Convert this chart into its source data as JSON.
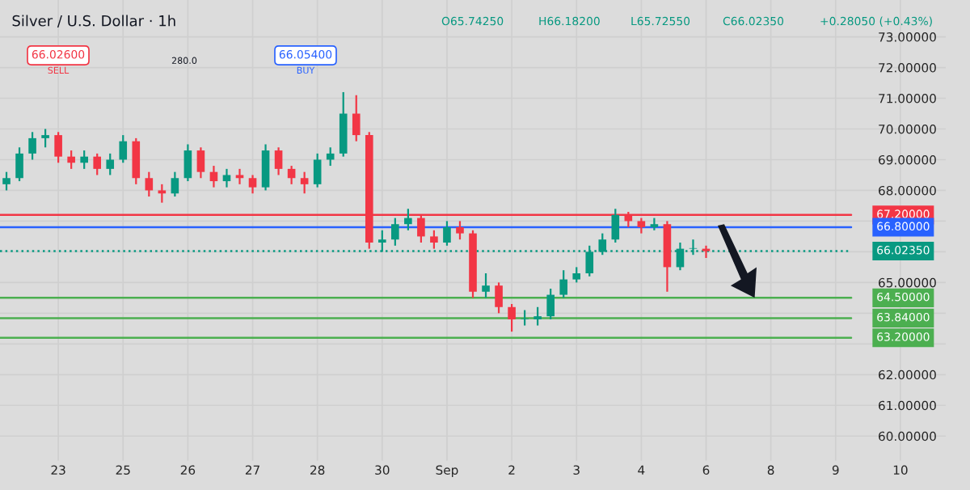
{
  "chart_data": {
    "type": "candlestick",
    "title": "Silver / U.S. Dollar · 1h",
    "annotations": [
      "O65.74250",
      "H66.18200",
      "L65.72550",
      "C66.02350",
      "+0.28050 (+0.43%)",
      "66.02600",
      "SELL",
      "280.0",
      "66.05400",
      "BUY"
    ],
    "categories": [
      null,
      null,
      null,
      null,
      "23",
      null,
      null,
      null,
      null,
      "25",
      null,
      null,
      null,
      null,
      "26",
      null,
      null,
      null,
      null,
      "27",
      null,
      null,
      null,
      null,
      "28",
      null,
      null,
      null,
      null,
      "30",
      null,
      null,
      null,
      null,
      "Sep",
      null,
      null,
      null,
      null,
      "2",
      null,
      null,
      null,
      null,
      "3",
      null,
      null,
      null,
      null,
      "4",
      null,
      null,
      null,
      null,
      "6",
      null,
      null,
      null,
      null,
      "8",
      null,
      null,
      null,
      null,
      "9",
      null,
      null,
      null,
      null,
      "10",
      null,
      null,
      null
    ],
    "ohlc": [
      [
        68.2,
        68.6,
        68.0,
        68.4
      ],
      [
        68.4,
        69.4,
        68.3,
        69.2
      ],
      [
        69.2,
        69.9,
        69.0,
        69.7
      ],
      [
        69.7,
        70.0,
        69.4,
        69.8
      ],
      [
        69.8,
        69.9,
        68.9,
        69.1
      ],
      [
        69.1,
        69.3,
        68.7,
        68.9
      ],
      [
        68.9,
        69.3,
        68.7,
        69.1
      ],
      [
        69.1,
        69.2,
        68.5,
        68.7
      ],
      [
        68.7,
        69.2,
        68.5,
        69.0
      ],
      [
        69.0,
        69.8,
        68.9,
        69.6
      ],
      [
        69.6,
        69.7,
        68.2,
        68.4
      ],
      [
        68.4,
        68.6,
        67.8,
        68.0
      ],
      [
        68.0,
        68.2,
        67.6,
        67.9
      ],
      [
        67.9,
        68.6,
        67.8,
        68.4
      ],
      [
        68.4,
        69.5,
        68.3,
        69.3
      ],
      [
        69.3,
        69.4,
        68.4,
        68.6
      ],
      [
        68.6,
        68.8,
        68.1,
        68.3
      ],
      [
        68.3,
        68.7,
        68.1,
        68.5
      ],
      [
        68.5,
        68.7,
        68.2,
        68.4
      ],
      [
        68.4,
        68.5,
        67.9,
        68.1
      ],
      [
        68.1,
        69.5,
        68.0,
        69.3
      ],
      [
        69.3,
        69.4,
        68.5,
        68.7
      ],
      [
        68.7,
        68.8,
        68.2,
        68.4
      ],
      [
        68.4,
        68.6,
        67.9,
        68.2
      ],
      [
        68.2,
        69.2,
        68.1,
        69.0
      ],
      [
        69.0,
        69.4,
        68.8,
        69.2
      ],
      [
        69.2,
        71.2,
        69.1,
        70.5
      ],
      [
        70.5,
        71.1,
        69.6,
        69.8
      ],
      [
        69.8,
        69.9,
        66.1,
        66.3
      ],
      [
        66.3,
        66.7,
        66.0,
        66.4
      ],
      [
        66.4,
        67.1,
        66.2,
        66.9
      ],
      [
        66.9,
        67.4,
        66.7,
        67.1
      ],
      [
        67.1,
        67.2,
        66.3,
        66.5
      ],
      [
        66.5,
        66.7,
        66.1,
        66.3
      ],
      [
        66.3,
        67.0,
        66.2,
        66.8
      ],
      [
        66.8,
        67.0,
        66.4,
        66.6
      ],
      [
        66.6,
        66.7,
        64.5,
        64.7
      ],
      [
        64.7,
        65.3,
        64.5,
        64.9
      ],
      [
        64.9,
        65.0,
        64.0,
        64.2
      ],
      [
        64.2,
        64.3,
        63.4,
        63.8
      ],
      [
        63.8,
        64.1,
        63.6,
        63.8
      ],
      [
        63.8,
        64.2,
        63.6,
        63.9
      ],
      [
        63.9,
        64.8,
        63.8,
        64.6
      ],
      [
        64.6,
        65.4,
        64.5,
        65.1
      ],
      [
        65.1,
        65.5,
        65.0,
        65.3
      ],
      [
        65.3,
        66.2,
        65.2,
        66.0
      ],
      [
        66.0,
        66.6,
        65.9,
        66.4
      ],
      [
        66.4,
        67.4,
        66.3,
        67.2
      ],
      [
        67.2,
        67.3,
        66.8,
        67.0
      ],
      [
        67.0,
        67.1,
        66.6,
        66.8
      ],
      [
        66.8,
        67.1,
        66.7,
        66.9
      ],
      [
        66.9,
        67.0,
        64.7,
        65.5
      ],
      [
        65.5,
        66.3,
        65.4,
        66.1
      ],
      [
        66.1,
        66.4,
        65.9,
        66.1
      ],
      [
        66.1,
        66.2,
        65.8,
        66.02
      ],
      null,
      null,
      null,
      null,
      null,
      null,
      null,
      null,
      null,
      null,
      null,
      null,
      null,
      null,
      null,
      null,
      null,
      null
    ],
    "colors": [
      "#089981",
      "#089981",
      "#089981",
      "#089981",
      "#f23645",
      "#f23645",
      "#089981",
      "#f23645",
      "#089981",
      "#089981",
      "#f23645",
      "#f23645",
      "#f23645",
      "#089981",
      "#089981",
      "#f23645",
      "#f23645",
      "#089981",
      "#f23645",
      "#f23645",
      "#089981",
      "#f23645",
      "#f23645",
      "#f23645",
      "#089981",
      "#089981",
      "#089981",
      "#f23645",
      "#f23645",
      "#089981",
      "#089981",
      "#089981",
      "#f23645",
      "#f23645",
      "#089981",
      "#f23645",
      "#f23645",
      "#089981",
      "#f23645",
      "#f23645",
      "#089981",
      "#089981",
      "#089981",
      "#089981",
      "#089981",
      "#089981",
      "#089981",
      "#089981",
      "#f23645",
      "#f23645",
      "#089981",
      "#f23645",
      "#089981",
      "#089981",
      "#f23645",
      null,
      null,
      null,
      null,
      null,
      null,
      null,
      null,
      null,
      null,
      null,
      null,
      null,
      null,
      null,
      null,
      null,
      null
    ],
    "ylim": [
      59.2,
      74.2
    ],
    "yticks": [
      {
        "value": 60,
        "label": "60.00000"
      },
      {
        "value": 61,
        "label": "61.00000"
      },
      {
        "value": 62,
        "label": "62.00000"
      },
      {
        "value": 63,
        "label": null
      },
      {
        "value": 64,
        "label": null
      },
      {
        "value": 65,
        "label": "65.00000"
      },
      {
        "value": 66,
        "label": null
      },
      {
        "value": 67,
        "label": null
      },
      {
        "value": 68,
        "label": "68.00000"
      },
      {
        "value": 69,
        "label": "69.00000"
      },
      {
        "value": 70,
        "label": "70.00000"
      },
      {
        "value": 71,
        "label": "71.00000"
      },
      {
        "value": 72,
        "label": "72.00000"
      },
      {
        "value": 73,
        "label": "73.00000"
      }
    ],
    "ref_lines": [
      {
        "axis": "y",
        "value": 67.2,
        "label": "67.20000",
        "color": "#f23645"
      },
      {
        "axis": "y",
        "value": 66.8,
        "label": "66.80000",
        "color": "#2962ff"
      },
      {
        "axis": "y",
        "value": 66.0235,
        "label": "66.02350",
        "color": "#089981",
        "line_style": "dotted"
      },
      {
        "axis": "y",
        "value": 64.5,
        "label": "64.50000",
        "color": "#4caf50"
      },
      {
        "axis": "y",
        "value": 63.84,
        "label": "63.84000",
        "color": "#4caf50"
      },
      {
        "axis": "y",
        "value": 63.2,
        "label": "63.20000",
        "color": "#4caf50"
      }
    ],
    "grid": true
  }
}
